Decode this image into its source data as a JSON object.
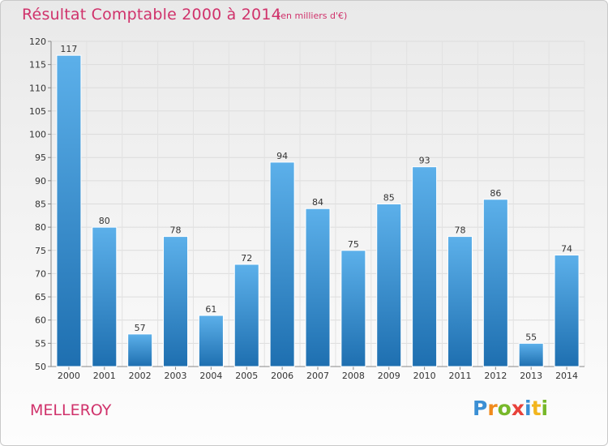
{
  "header": {
    "title": "Résultat Comptable 2000 à 2014",
    "subtitle": "(en milliers d'€)"
  },
  "footer": {
    "town": "MELLEROY",
    "logo_letters": [
      {
        "char": "P",
        "color": "#3b8fd4"
      },
      {
        "char": "r",
        "color": "#f08a1c"
      },
      {
        "char": "o",
        "color": "#77b82a"
      },
      {
        "char": "x",
        "color": "#e8423a"
      },
      {
        "char": "i",
        "color": "#3b8fd4"
      },
      {
        "char": "t",
        "color": "#f2b51d"
      },
      {
        "char": "i",
        "color": "#77b82a"
      }
    ]
  },
  "colors": {
    "accent": "#d0326b",
    "bar_top": "#5cb0ea",
    "bar_bottom": "#1e6fb0"
  },
  "chart_data": {
    "type": "bar",
    "title": "Résultat Comptable 2000 à 2014",
    "subtitle": "(en milliers d'€)",
    "xlabel": "",
    "ylabel": "",
    "categories": [
      "2000",
      "2001",
      "2002",
      "2003",
      "2004",
      "2005",
      "2006",
      "2007",
      "2008",
      "2009",
      "2010",
      "2011",
      "2012",
      "2013",
      "2014"
    ],
    "values": [
      117,
      80,
      57,
      78,
      61,
      72,
      94,
      84,
      75,
      85,
      93,
      78,
      86,
      55,
      74
    ],
    "ylim": [
      50,
      120
    ],
    "yticks": [
      50,
      55,
      60,
      65,
      70,
      75,
      80,
      85,
      90,
      95,
      100,
      105,
      110,
      115,
      120
    ],
    "grid": true,
    "legend": "none"
  }
}
